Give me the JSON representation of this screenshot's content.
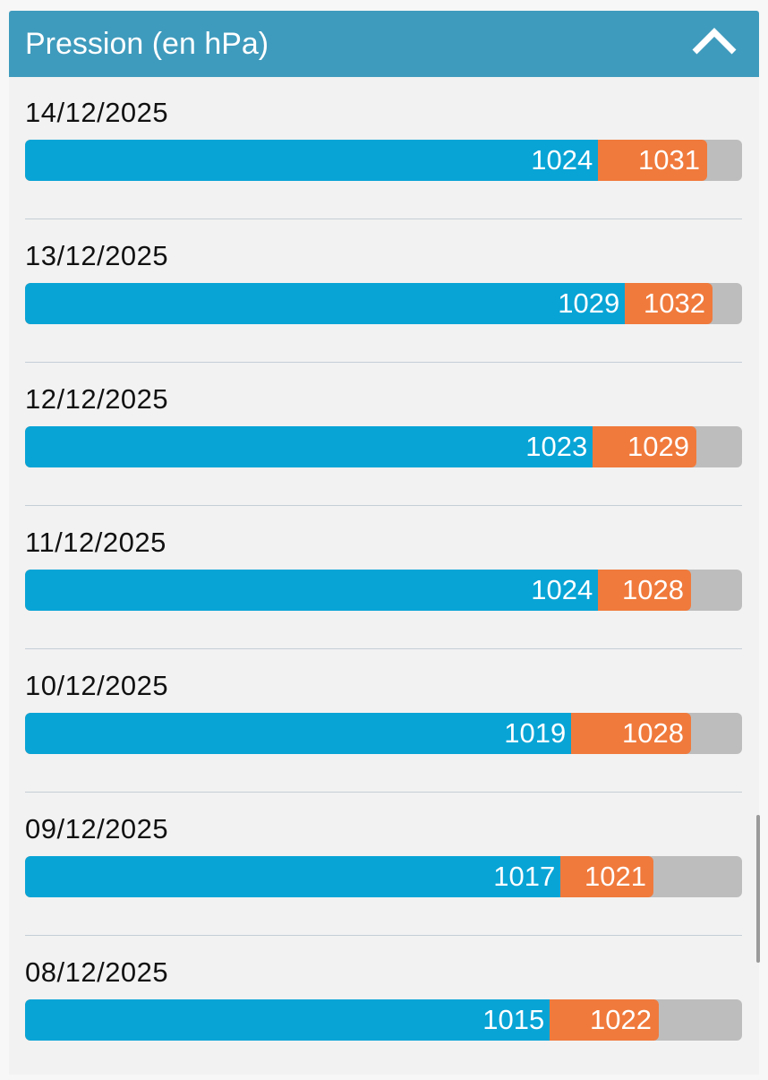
{
  "header": {
    "title": "Pression (en hPa)",
    "collapse_icon": "chevron-up-icon"
  },
  "colors": {
    "header": "#3f9bbd",
    "min": "#08a4d6",
    "max": "#f07a3c",
    "track": "#bdbdbd"
  },
  "rows": [
    {
      "date": "14/12/2025",
      "min": "1024",
      "max": "1031"
    },
    {
      "date": "13/12/2025",
      "min": "1029",
      "max": "1032"
    },
    {
      "date": "12/12/2025",
      "min": "1023",
      "max": "1029"
    },
    {
      "date": "11/12/2025",
      "min": "1024",
      "max": "1028"
    },
    {
      "date": "10/12/2025",
      "min": "1019",
      "max": "1028"
    },
    {
      "date": "09/12/2025",
      "min": "1017",
      "max": "1021"
    },
    {
      "date": "08/12/2025",
      "min": "1015",
      "max": "1022"
    }
  ]
}
